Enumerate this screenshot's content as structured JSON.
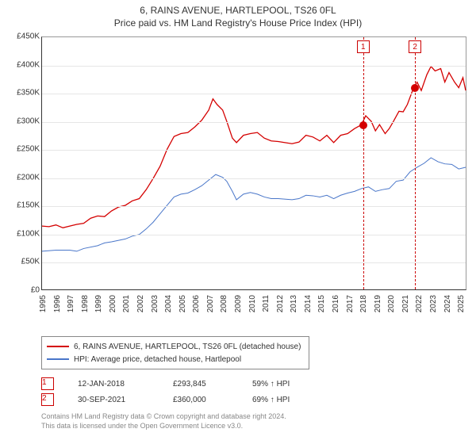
{
  "title_line1": "6, RAINS AVENUE, HARTLEPOOL, TS26 0FL",
  "title_line2": "Price paid vs. HM Land Registry's House Price Index (HPI)",
  "chart": {
    "type": "line",
    "background_color": "#ffffff",
    "grid_color": "#e6e6e6",
    "axis_color": "#333333",
    "label_fontsize": 10,
    "ylim": [
      0,
      450000
    ],
    "ytick_step": 50000,
    "yticks": [
      {
        "v": 0,
        "label": "£0"
      },
      {
        "v": 50000,
        "label": "£50K"
      },
      {
        "v": 100000,
        "label": "£100K"
      },
      {
        "v": 150000,
        "label": "£150K"
      },
      {
        "v": 200000,
        "label": "£200K"
      },
      {
        "v": 250000,
        "label": "£250K"
      },
      {
        "v": 300000,
        "label": "£300K"
      },
      {
        "v": 350000,
        "label": "£350K"
      },
      {
        "v": 400000,
        "label": "£400K"
      },
      {
        "v": 450000,
        "label": "£450K"
      }
    ],
    "xlim": [
      1995,
      2025.5
    ],
    "xticks": [
      1995,
      1996,
      1997,
      1998,
      1999,
      2000,
      2001,
      2002,
      2003,
      2004,
      2005,
      2006,
      2007,
      2008,
      2009,
      2010,
      2011,
      2012,
      2013,
      2014,
      2015,
      2016,
      2017,
      2018,
      2019,
      2020,
      2021,
      2022,
      2023,
      2024,
      2025
    ],
    "series": [
      {
        "name": "red",
        "color": "#d40000",
        "line_width": 1.3,
        "label": "6, RAINS AVENUE, HARTLEPOOL, TS26 0FL (detached house)",
        "points": [
          [
            1995,
            113000
          ],
          [
            1995.5,
            112000
          ],
          [
            1996,
            115000
          ],
          [
            1996.5,
            110000
          ],
          [
            1997,
            113000
          ],
          [
            1997.5,
            116000
          ],
          [
            1998,
            118000
          ],
          [
            1998.5,
            127000
          ],
          [
            1999,
            131000
          ],
          [
            1999.5,
            130000
          ],
          [
            2000,
            140000
          ],
          [
            2000.5,
            147000
          ],
          [
            2001,
            150000
          ],
          [
            2001.5,
            158000
          ],
          [
            2002,
            162000
          ],
          [
            2002.5,
            178000
          ],
          [
            2003,
            198000
          ],
          [
            2003.5,
            220000
          ],
          [
            2004,
            250000
          ],
          [
            2004.5,
            273000
          ],
          [
            2005,
            278000
          ],
          [
            2005.5,
            280000
          ],
          [
            2006,
            290000
          ],
          [
            2006.5,
            302000
          ],
          [
            2007,
            320000
          ],
          [
            2007.3,
            340000
          ],
          [
            2007.6,
            330000
          ],
          [
            2008,
            320000
          ],
          [
            2008.3,
            300000
          ],
          [
            2008.7,
            270000
          ],
          [
            2009,
            262000
          ],
          [
            2009.5,
            275000
          ],
          [
            2010,
            278000
          ],
          [
            2010.5,
            280000
          ],
          [
            2011,
            270000
          ],
          [
            2011.5,
            265000
          ],
          [
            2012,
            264000
          ],
          [
            2012.5,
            262000
          ],
          [
            2013,
            260000
          ],
          [
            2013.5,
            263000
          ],
          [
            2014,
            275000
          ],
          [
            2014.5,
            272000
          ],
          [
            2015,
            265000
          ],
          [
            2015.5,
            275000
          ],
          [
            2016,
            262000
          ],
          [
            2016.5,
            275000
          ],
          [
            2017,
            278000
          ],
          [
            2017.5,
            287000
          ],
          [
            2018,
            293845
          ],
          [
            2018.3,
            310000
          ],
          [
            2018.7,
            300000
          ],
          [
            2019,
            283000
          ],
          [
            2019.3,
            294000
          ],
          [
            2019.7,
            278000
          ],
          [
            2020,
            287000
          ],
          [
            2020.3,
            300000
          ],
          [
            2020.7,
            318000
          ],
          [
            2021,
            317000
          ],
          [
            2021.3,
            330000
          ],
          [
            2021.75,
            360000
          ],
          [
            2022,
            370000
          ],
          [
            2022.3,
            355000
          ],
          [
            2022.7,
            383000
          ],
          [
            2023,
            398000
          ],
          [
            2023.3,
            390000
          ],
          [
            2023.7,
            394000
          ],
          [
            2024,
            370000
          ],
          [
            2024.3,
            387000
          ],
          [
            2024.7,
            370000
          ],
          [
            2025,
            360000
          ],
          [
            2025.3,
            378000
          ],
          [
            2025.5,
            355000
          ]
        ]
      },
      {
        "name": "blue",
        "color": "#4976c9",
        "line_width": 1.0,
        "label": "HPI: Average price, detached house, Hartlepool",
        "points": [
          [
            1995,
            68000
          ],
          [
            1996,
            70000
          ],
          [
            1997,
            70000
          ],
          [
            1997.5,
            68000
          ],
          [
            1998,
            73000
          ],
          [
            1999,
            78000
          ],
          [
            1999.5,
            83000
          ],
          [
            2000,
            85000
          ],
          [
            2001,
            90000
          ],
          [
            2001.5,
            95000
          ],
          [
            2002,
            98000
          ],
          [
            2002.5,
            108000
          ],
          [
            2003,
            120000
          ],
          [
            2003.5,
            135000
          ],
          [
            2004,
            150000
          ],
          [
            2004.5,
            165000
          ],
          [
            2005,
            170000
          ],
          [
            2005.5,
            172000
          ],
          [
            2006,
            178000
          ],
          [
            2006.5,
            185000
          ],
          [
            2007,
            195000
          ],
          [
            2007.5,
            205000
          ],
          [
            2008,
            200000
          ],
          [
            2008.3,
            193000
          ],
          [
            2008.7,
            175000
          ],
          [
            2009,
            160000
          ],
          [
            2009.5,
            170000
          ],
          [
            2010,
            173000
          ],
          [
            2010.5,
            170000
          ],
          [
            2011,
            165000
          ],
          [
            2011.5,
            162000
          ],
          [
            2012,
            162000
          ],
          [
            2013,
            160000
          ],
          [
            2013.5,
            162000
          ],
          [
            2014,
            168000
          ],
          [
            2014.5,
            167000
          ],
          [
            2015,
            165000
          ],
          [
            2015.5,
            168000
          ],
          [
            2016,
            162000
          ],
          [
            2016.5,
            168000
          ],
          [
            2017,
            172000
          ],
          [
            2017.5,
            175000
          ],
          [
            2018,
            180000
          ],
          [
            2018.5,
            183000
          ],
          [
            2019,
            175000
          ],
          [
            2019.5,
            178000
          ],
          [
            2020,
            180000
          ],
          [
            2020.5,
            193000
          ],
          [
            2021,
            195000
          ],
          [
            2021.5,
            210000
          ],
          [
            2022,
            218000
          ],
          [
            2022.5,
            225000
          ],
          [
            2023,
            235000
          ],
          [
            2023.5,
            228000
          ],
          [
            2024,
            224000
          ],
          [
            2024.5,
            223000
          ],
          [
            2025,
            215000
          ],
          [
            2025.5,
            218000
          ]
        ]
      }
    ],
    "markers": [
      {
        "n": "1",
        "x": 2018.03,
        "y": 293845,
        "dot_color": "#d40000"
      },
      {
        "n": "2",
        "x": 2021.75,
        "y": 360000,
        "dot_color": "#d40000"
      }
    ]
  },
  "transactions": [
    {
      "n": "1",
      "date": "12-JAN-2018",
      "price": "£293,845",
      "hpi": "59% ↑ HPI"
    },
    {
      "n": "2",
      "date": "30-SEP-2021",
      "price": "£360,000",
      "hpi": "69% ↑ HPI"
    }
  ],
  "footer_line1": "Contains HM Land Registry data © Crown copyright and database right 2024.",
  "footer_line2": "This data is licensed under the Open Government Licence v3.0."
}
